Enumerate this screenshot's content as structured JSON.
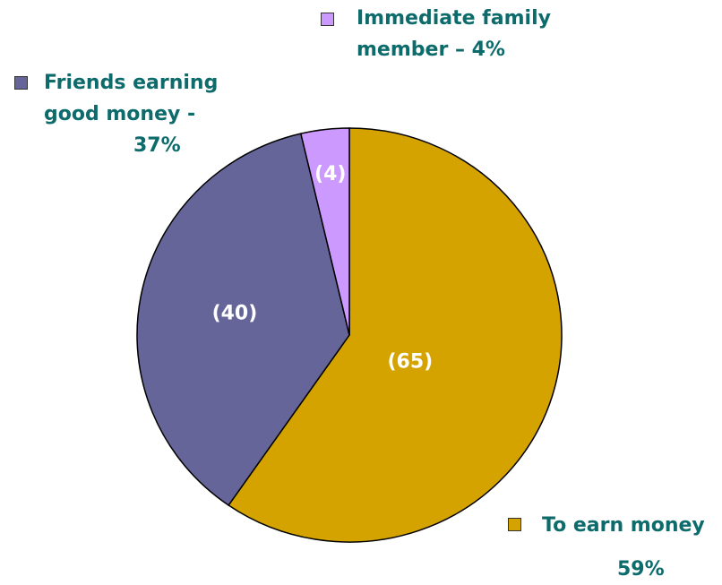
{
  "chart_data": {
    "type": "pie",
    "categories": [
      "To earn money",
      "Friends earning good money -",
      "Immediate family member –"
    ],
    "category_shares": [
      "59%",
      "37%",
      "4%"
    ],
    "values": [
      65,
      40,
      4
    ],
    "value_labels": [
      "(65)",
      "(40)",
      "(4)"
    ],
    "colors": [
      "#d4a300",
      "#65659a",
      "#cc99ff"
    ]
  }
}
